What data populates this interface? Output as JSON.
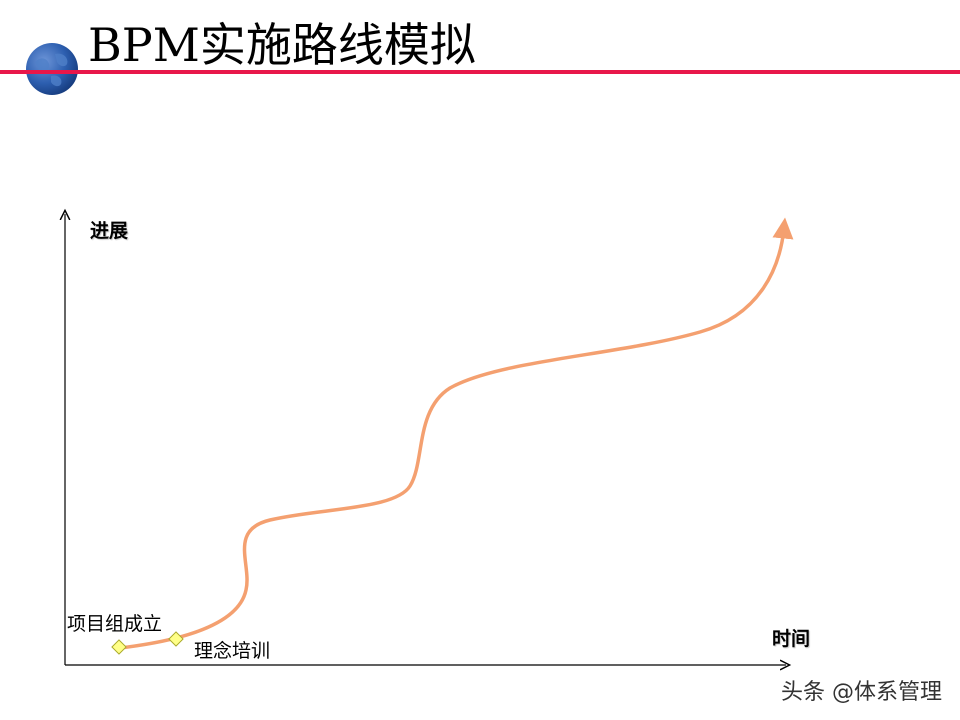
{
  "title": "BPM实施路线模拟",
  "diagram": {
    "y_axis_label": "进展",
    "x_axis_label": "时间",
    "milestones": [
      "项目组成立",
      "理念培训"
    ]
  },
  "watermark": "头条 @体系管理",
  "colors": {
    "title_rule": "#e8174a",
    "curve": "#f4a070",
    "milestone_fill": "#ffff88",
    "milestone_stroke": "#a9a92a",
    "globe": "#2d5fb0"
  }
}
